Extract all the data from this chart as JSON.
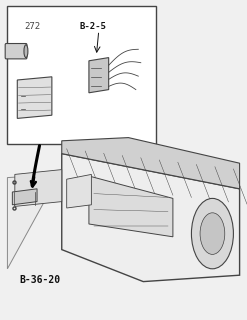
{
  "bg_color": "#f0f0f0",
  "box_color": "#ffffff",
  "line_color": "#444444",
  "dark_line": "#111111",
  "label_272": "272",
  "label_b25": "B-2-5",
  "label_b3620": "B-36-20",
  "title_fontsize": 7,
  "annotation_fontsize": 6.5
}
